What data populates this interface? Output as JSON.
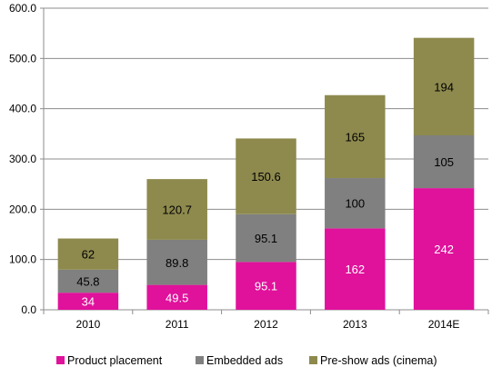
{
  "chart_data": {
    "type": "bar",
    "stacked": true,
    "categories": [
      "2010",
      "2011",
      "2012",
      "2013",
      "2014E"
    ],
    "series": [
      {
        "name": "Product placement",
        "values": [
          34,
          49.5,
          95.1,
          162,
          242
        ],
        "labels": [
          "34",
          "49.5",
          "95.1",
          "162",
          "242"
        ],
        "color": "#e0119b",
        "label_color": "#ffffff"
      },
      {
        "name": "Embedded ads",
        "values": [
          45.8,
          89.8,
          95.1,
          100,
          105
        ],
        "labels": [
          "45.8",
          "89.8",
          "95.1",
          "100",
          "105"
        ],
        "color": "#808080",
        "label_color": "#000000"
      },
      {
        "name": "Pre-show ads (cinema)",
        "values": [
          62,
          120.7,
          150.6,
          165,
          194
        ],
        "labels": [
          "62",
          "120.7",
          "150.6",
          "165",
          "194"
        ],
        "color": "#8e8a4e",
        "label_color": "#000000"
      }
    ],
    "ylim": [
      0,
      600
    ],
    "yticks": [
      "0.0",
      "100.0",
      "200.0",
      "300.0",
      "400.0",
      "500.0",
      "600.0"
    ],
    "gridlines": true,
    "legend_position": "bottom",
    "title": "",
    "xlabel": "",
    "ylabel": ""
  }
}
